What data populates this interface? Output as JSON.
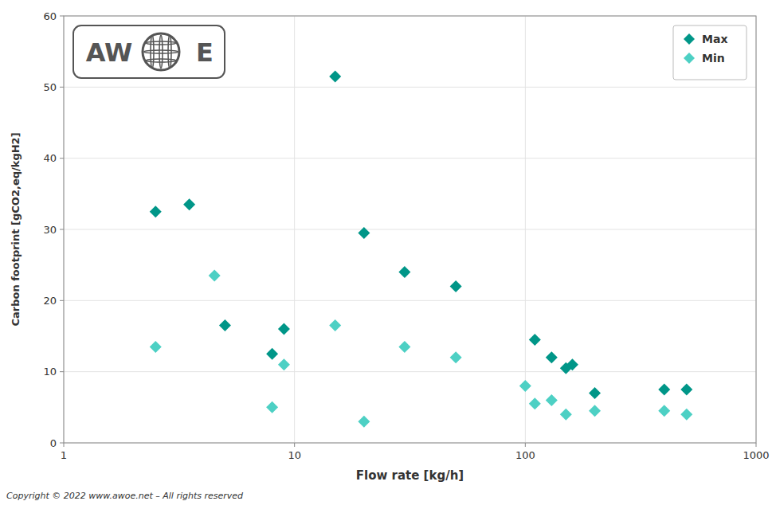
{
  "chart_data": {
    "type": "scatter",
    "xlabel": "Flow rate [kg/h]",
    "ylabel": "Carbon footprint [gCO2,eq/kgH2]",
    "log": "x",
    "grid": true,
    "legend": "upper right",
    "xlim": [
      1,
      1000
    ],
    "ylim": [
      0,
      60
    ],
    "xticks": [
      1,
      10,
      100,
      1000
    ],
    "yticks": [
      0,
      10,
      20,
      30,
      40,
      50,
      60
    ],
    "series": [
      {
        "name": "Max",
        "color": "#009688",
        "marker": "diamond",
        "x": [
          2.5,
          3.5,
          5.0,
          8.0,
          9.0,
          15.0,
          20.0,
          30.0,
          50.0,
          110.0,
          130.0,
          150.0,
          160.0,
          200.0,
          400.0,
          500.0
        ],
        "values": [
          32.5,
          33.5,
          16.5,
          12.5,
          16.0,
          51.5,
          29.5,
          24.0,
          22.0,
          14.5,
          12.0,
          10.5,
          11.0,
          7.0,
          7.5,
          7.5
        ]
      },
      {
        "name": "Min",
        "color": "#4dd0c4",
        "marker": "diamond",
        "x": [
          2.5,
          4.5,
          8.0,
          9.0,
          15.0,
          20.0,
          30.0,
          50.0,
          100.0,
          110.0,
          130.0,
          150.0,
          200.0,
          400.0,
          500.0
        ],
        "values": [
          13.5,
          23.5,
          5.0,
          11.0,
          16.5,
          3.0,
          13.5,
          12.0,
          8.0,
          5.5,
          6.0,
          4.0,
          4.5,
          4.5,
          4.0
        ]
      }
    ],
    "annotations": [
      "Copyright © 2022 www.awoe.net – All rights reserved",
      "AW",
      "E"
    ]
  }
}
